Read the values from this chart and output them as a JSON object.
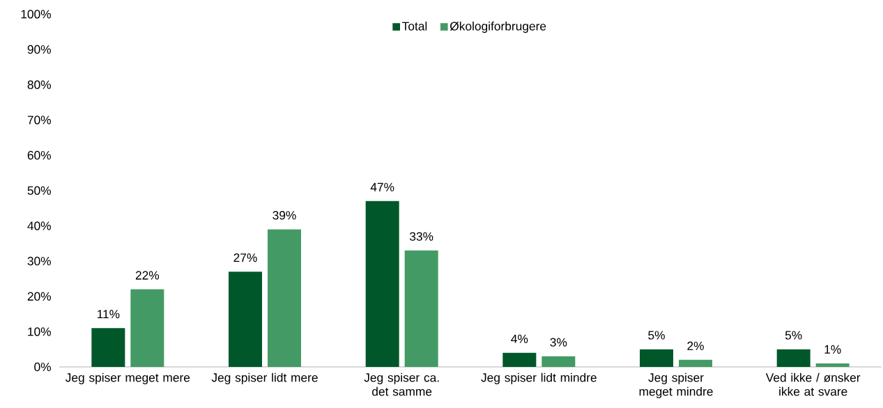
{
  "chart_data": {
    "type": "bar",
    "categories": [
      "Jeg spiser meget mere",
      "Jeg spiser lidt mere",
      "Jeg spiser ca. det samme",
      "Jeg spiser lidt mindre",
      "Jeg spiser meget mindre",
      "Ved ikke / ønsker ikke at svare"
    ],
    "series": [
      {
        "name": "Total",
        "color": "#00582a",
        "values": [
          11,
          27,
          47,
          4,
          5,
          5
        ],
        "value_labels": [
          "11%",
          "27%",
          "47%",
          "4%",
          "5%",
          "5%"
        ]
      },
      {
        "name": "Økologiforbrugere",
        "color": "#449a64",
        "values": [
          22,
          39,
          33,
          3,
          2,
          1
        ],
        "value_labels": [
          "22%",
          "39%",
          "33%",
          "3%",
          "2%",
          "1%"
        ]
      }
    ],
    "ylim": [
      0,
      100
    ],
    "yticks": [
      {
        "value": 0,
        "label": "0%"
      },
      {
        "value": 10,
        "label": "10%"
      },
      {
        "value": 20,
        "label": "20%"
      },
      {
        "value": 30,
        "label": "30%"
      },
      {
        "value": 40,
        "label": "40%"
      },
      {
        "value": 50,
        "label": "50%"
      },
      {
        "value": 60,
        "label": "60%"
      },
      {
        "value": 70,
        "label": "70%"
      },
      {
        "value": 80,
        "label": "80%"
      },
      {
        "value": 90,
        "label": "90%"
      },
      {
        "value": 100,
        "label": "100%"
      }
    ],
    "legend": "top",
    "grid": false
  }
}
